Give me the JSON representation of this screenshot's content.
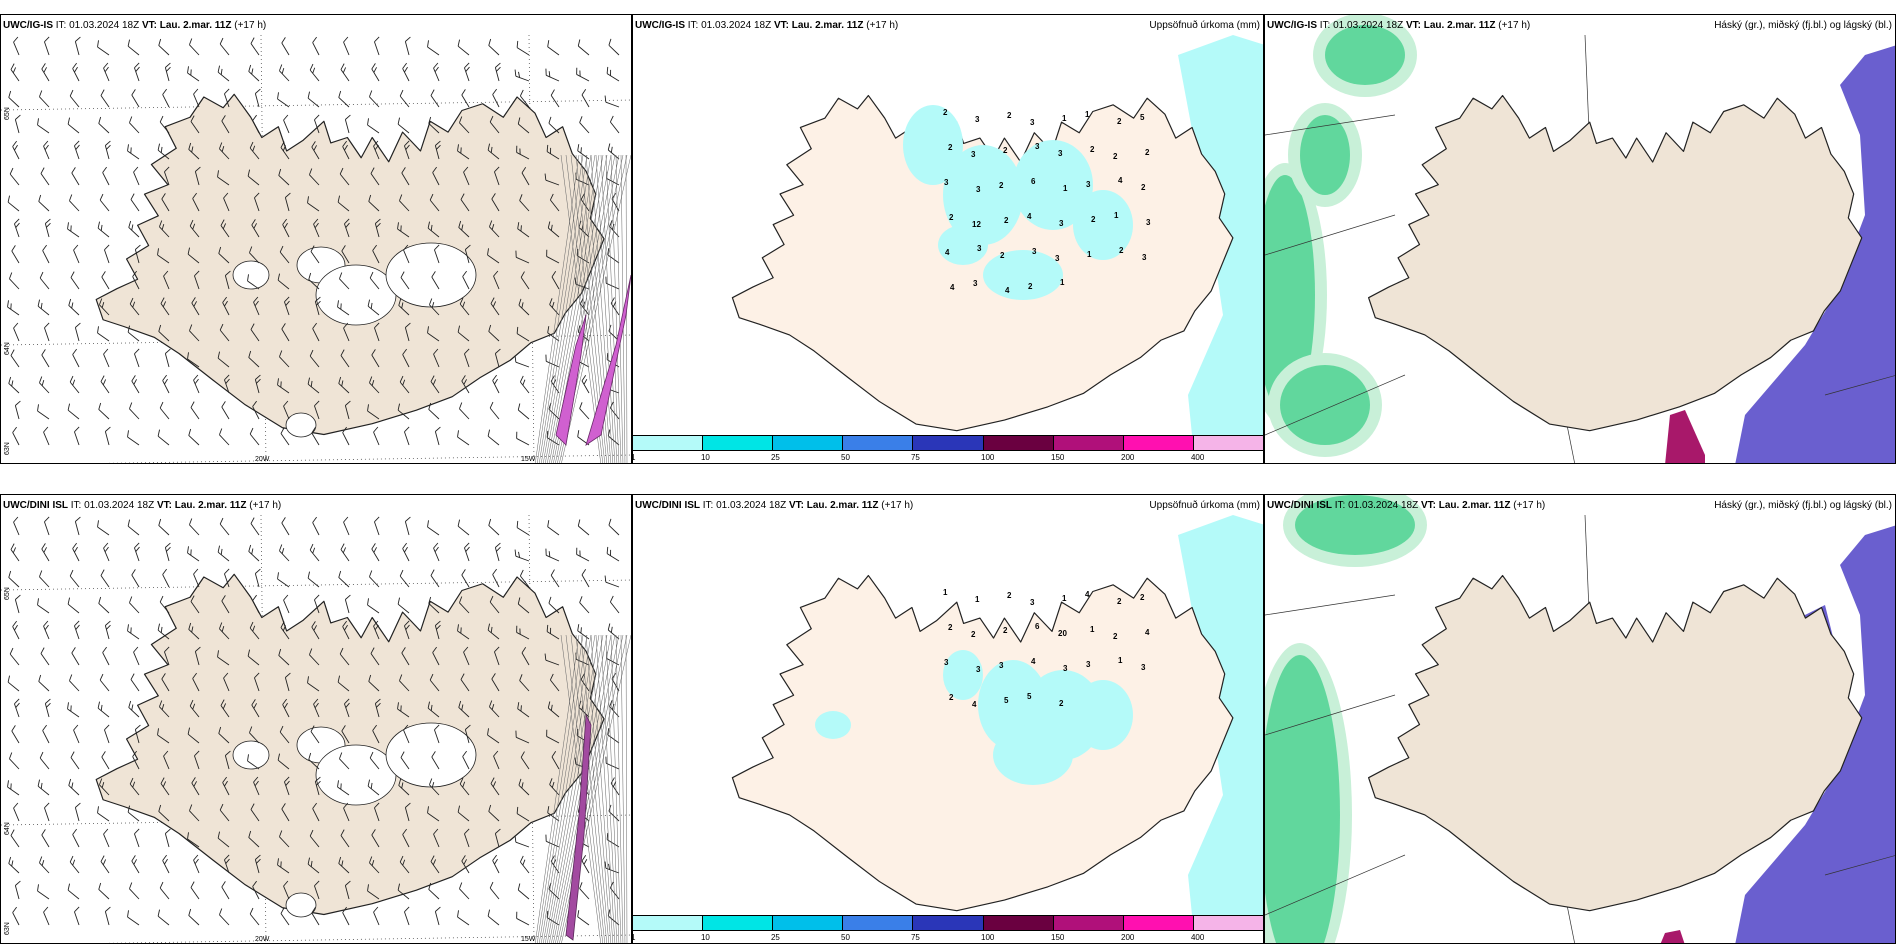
{
  "rows": [
    {
      "model": "UWC/IG-IS",
      "panels": [
        {
          "model": "UWC/IG-IS",
          "it_label": "IT:",
          "it": "01.03.2024 18Z",
          "vt_label": "VT:",
          "vt": "Lau. 2.mar. 11Z",
          "lead": "(+17 h)",
          "right_title": "",
          "lat_labels": [
            "65N",
            "64N",
            "63N"
          ],
          "lon_labels": [
            "20W",
            "15W"
          ]
        },
        {
          "model": "UWC/IG-IS",
          "it_label": "IT:",
          "it": "01.03.2024 18Z",
          "vt_label": "VT:",
          "vt": "Lau. 2.mar. 11Z",
          "lead": "(+17 h)",
          "right_title": "Uppsöfnuð úrkoma (mm)",
          "precip_labels": [
            "2",
            "3",
            "2",
            "3",
            "1",
            "1",
            "2",
            "5",
            "2",
            "3",
            "2",
            "3",
            "3",
            "2",
            "2",
            "2",
            "3",
            "3",
            "2",
            "6",
            "1",
            "3",
            "4",
            "2",
            "2",
            "12",
            "2",
            "4",
            "3",
            "2",
            "1",
            "3",
            "4",
            "3",
            "2",
            "3",
            "3",
            "1",
            "2",
            "3",
            "4",
            "3",
            "4",
            "2",
            "1"
          ]
        },
        {
          "model": "UWC/IG-IS",
          "it_label": "IT:",
          "it": "01.03.2024 18Z",
          "vt_label": "VT:",
          "vt": "Lau. 2.mar. 11Z",
          "lead": "(+17 h)",
          "right_title": "Háský (gr.), miðský (fj.bl.) og lágský (bl.)"
        }
      ]
    },
    {
      "model": "UWC/DINI ISL",
      "panels": [
        {
          "model": "UWC/DINI ISL",
          "it_label": "IT:",
          "it": "01.03.2024 18Z",
          "vt_label": "VT:",
          "vt": "Lau. 2.mar. 11Z",
          "lead": "(+17 h)",
          "right_title": "",
          "lat_labels": [
            "65N",
            "64N",
            "63N"
          ],
          "lon_labels": [
            "20W",
            "15W"
          ]
        },
        {
          "model": "UWC/DINI ISL",
          "it_label": "IT:",
          "it": "01.03.2024 18Z",
          "vt_label": "VT:",
          "vt": "Lau. 2.mar. 11Z",
          "lead": "(+17 h)",
          "right_title": "Uppsöfnuð úrkoma (mm)",
          "precip_labels": [
            "1",
            "1",
            "2",
            "3",
            "1",
            "4",
            "2",
            "2",
            "2",
            "2",
            "2",
            "6",
            "20",
            "1",
            "2",
            "4",
            "3",
            "3",
            "3",
            "4",
            "3",
            "3",
            "1",
            "3",
            "2",
            "4",
            "5",
            "5",
            "2"
          ]
        },
        {
          "model": "UWC/DINI ISL",
          "it_label": "IT:",
          "it": "01.03.2024 18Z",
          "vt_label": "VT:",
          "vt": "Lau. 2.mar. 11Z",
          "lead": "(+17 h)",
          "right_title": "Háský (gr.), miðský (fj.bl.) og lágský (bl.)"
        }
      ]
    }
  ],
  "colorbar": {
    "ticks": [
      "1",
      "10",
      "25",
      "50",
      "75",
      "100",
      "150",
      "200",
      "400"
    ],
    "colors": [
      "#b4faf9",
      "#00e5e5",
      "#00bfea",
      "#3a7fe8",
      "#2a36b8",
      "#6a0040",
      "#b0107a",
      "#ff10b0",
      "#f5b4e8"
    ]
  },
  "colors": {
    "land": "#efe4d6",
    "land_precip": "#fdf1e6",
    "precip_light": "#b4faf9",
    "cloud_low": "#6a5fcf",
    "cloud_high": "#3fcf8a",
    "cloud_mid": "#a8186a",
    "wind_barb": "#222222"
  }
}
